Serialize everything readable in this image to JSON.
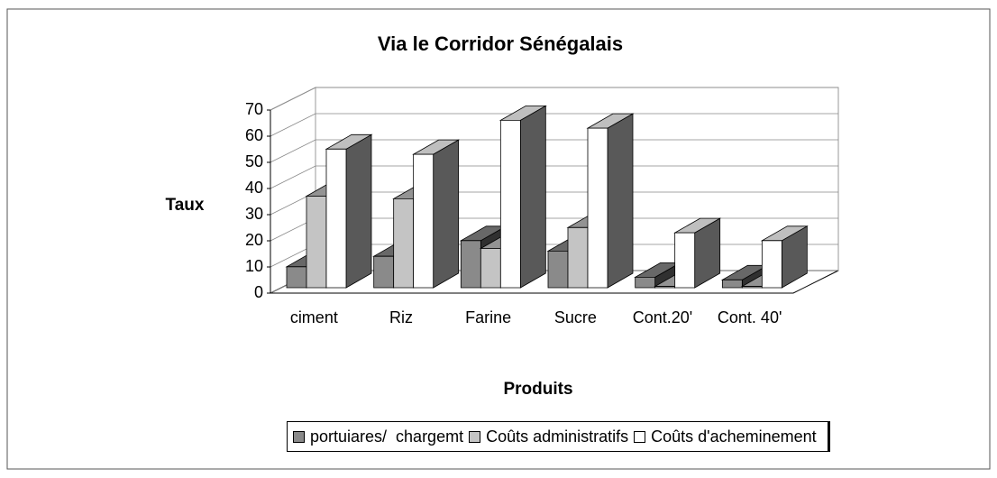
{
  "chart_data": {
    "type": "bar3d",
    "title": "Via le Corridor Sénégalais",
    "y_label": "Taux",
    "x_label": "Produits",
    "categories": [
      "ciment",
      "Riz",
      "Farine",
      "Sucre",
      "Cont.20'",
      "Cont. 40'"
    ],
    "series": [
      {
        "name": "portuiares/  chargemt",
        "color": "#8a8a8a",
        "values": [
          8,
          12,
          18,
          14,
          4,
          3
        ]
      },
      {
        "name": "Coûts administratifs",
        "color": "#c4c4c4",
        "values": [
          35,
          34,
          15,
          23,
          0.5,
          0.5
        ]
      },
      {
        "name": "Coûts d'acheminement",
        "color": "#ffffff",
        "values": [
          53,
          51,
          64,
          61,
          21,
          18
        ]
      }
    ],
    "ylim": [
      0,
      70
    ],
    "yticks": [
      0,
      10,
      20,
      30,
      40,
      50,
      60,
      70
    ],
    "grid": true
  }
}
